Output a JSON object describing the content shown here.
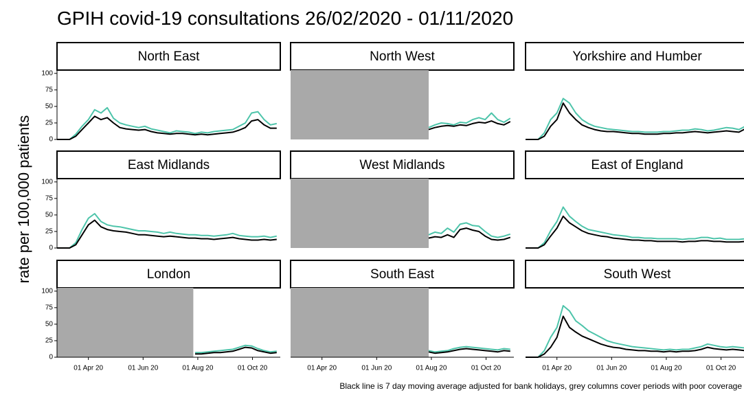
{
  "chart_data": {
    "type": "line",
    "title": "GPIH covid-19 consultations 26/02/2020 - 01/11/2020",
    "y_label": "rate per 100,000 patients",
    "caption": "Black line is 7 day moving average adjusted for bank holidays, grey columns cover periods with poor coverage",
    "x": [
      "2020-02-26",
      "2020-03-04",
      "2020-03-11",
      "2020-03-18",
      "2020-03-25",
      "2020-04-01",
      "2020-04-08",
      "2020-04-15",
      "2020-04-22",
      "2020-04-29",
      "2020-05-06",
      "2020-05-13",
      "2020-05-20",
      "2020-05-27",
      "2020-06-03",
      "2020-06-10",
      "2020-06-17",
      "2020-06-24",
      "2020-07-01",
      "2020-07-08",
      "2020-07-15",
      "2020-07-22",
      "2020-07-29",
      "2020-08-05",
      "2020-08-12",
      "2020-08-19",
      "2020-08-26",
      "2020-09-02",
      "2020-09-09",
      "2020-09-16",
      "2020-09-23",
      "2020-09-30",
      "2020-10-07",
      "2020-10-14",
      "2020-10-21",
      "2020-10-28"
    ],
    "xlim": [
      "2020-02-26",
      "2020-11-01"
    ],
    "xticks": [
      {
        "value": "2020-04-01",
        "label": "01 Apr 20"
      },
      {
        "value": "2020-06-01",
        "label": "01 Jun 20"
      },
      {
        "value": "2020-08-01",
        "label": "01 Aug 20"
      },
      {
        "value": "2020-10-01",
        "label": "01 Oct 20"
      }
    ],
    "ylim": [
      0,
      105
    ],
    "yticks": [
      0,
      25,
      50,
      75,
      100
    ],
    "shade_color": "#a9a9a9",
    "panels": [
      {
        "title": "North East",
        "series": [
          {
            "color": "#4dc4aa",
            "values": [
              0,
              0,
              0,
              8,
              20,
              30,
              45,
              40,
              48,
              32,
              25,
              22,
              20,
              18,
              20,
              16,
              14,
              12,
              10,
              13,
              12,
              11,
              9,
              11,
              10,
              12,
              13,
              14,
              15,
              20,
              25,
              40,
              42,
              30,
              22,
              24
            ]
          },
          {
            "color": "#000000",
            "values": [
              0,
              0,
              0,
              5,
              15,
              25,
              35,
              30,
              33,
              25,
              18,
              16,
              15,
              14,
              15,
              12,
              10,
              9,
              8,
              9,
              9,
              8,
              7,
              8,
              7,
              8,
              9,
              10,
              11,
              14,
              18,
              28,
              30,
              22,
              17,
              17
            ]
          }
        ]
      },
      {
        "title": "North West",
        "shaded_until": "2020-07-29",
        "series": [
          {
            "color": "#4dc4aa",
            "values": [
              null,
              null,
              null,
              null,
              null,
              null,
              null,
              null,
              null,
              null,
              null,
              null,
              null,
              null,
              null,
              null,
              null,
              null,
              null,
              null,
              null,
              null,
              18,
              22,
              25,
              24,
              22,
              26,
              25,
              30,
              33,
              30,
              40,
              30,
              26,
              32
            ]
          },
          {
            "color": "#000000",
            "values": [
              null,
              null,
              null,
              null,
              null,
              null,
              null,
              null,
              null,
              null,
              null,
              null,
              null,
              null,
              null,
              null,
              null,
              null,
              null,
              null,
              null,
              null,
              15,
              18,
              20,
              21,
              20,
              22,
              21,
              24,
              26,
              25,
              28,
              24,
              22,
              27
            ]
          }
        ]
      },
      {
        "title": "Yorkshire and Humber",
        "series": [
          {
            "color": "#4dc4aa",
            "values": [
              0,
              0,
              0,
              10,
              30,
              40,
              62,
              55,
              40,
              30,
              24,
              20,
              18,
              16,
              15,
              14,
              13,
              12,
              12,
              11,
              11,
              11,
              12,
              12,
              13,
              14,
              14,
              16,
              15,
              13,
              14,
              16,
              18,
              17,
              15,
              20
            ]
          },
          {
            "color": "#000000",
            "values": [
              0,
              0,
              0,
              5,
              20,
              30,
              55,
              40,
              30,
              22,
              18,
              15,
              13,
              12,
              12,
              11,
              10,
              9,
              9,
              8,
              8,
              8,
              9,
              9,
              10,
              10,
              11,
              12,
              11,
              10,
              11,
              12,
              13,
              12,
              11,
              16
            ]
          }
        ]
      },
      {
        "title": "East Midlands",
        "series": [
          {
            "color": "#4dc4aa",
            "values": [
              0,
              0,
              0,
              8,
              28,
              45,
              52,
              40,
              35,
              33,
              32,
              30,
              28,
              26,
              26,
              25,
              24,
              22,
              24,
              22,
              21,
              20,
              20,
              19,
              19,
              18,
              19,
              20,
              22,
              19,
              18,
              17,
              17,
              18,
              16,
              18
            ]
          },
          {
            "color": "#000000",
            "values": [
              0,
              0,
              0,
              5,
              20,
              35,
              42,
              32,
              28,
              26,
              25,
              24,
              22,
              20,
              20,
              19,
              18,
              17,
              18,
              17,
              16,
              15,
              15,
              14,
              14,
              13,
              14,
              15,
              16,
              14,
              13,
              12,
              12,
              13,
              12,
              13
            ]
          }
        ]
      },
      {
        "title": "West Midlands",
        "shaded_until": "2020-07-29",
        "series": [
          {
            "color": "#4dc4aa",
            "values": [
              null,
              null,
              null,
              null,
              null,
              null,
              null,
              null,
              null,
              null,
              null,
              null,
              null,
              null,
              null,
              null,
              null,
              null,
              null,
              null,
              null,
              null,
              20,
              24,
              22,
              30,
              24,
              36,
              38,
              34,
              33,
              25,
              18,
              16,
              18,
              21
            ]
          },
          {
            "color": "#000000",
            "values": [
              null,
              null,
              null,
              null,
              null,
              null,
              null,
              null,
              null,
              null,
              null,
              null,
              null,
              null,
              null,
              null,
              null,
              null,
              null,
              null,
              null,
              null,
              15,
              17,
              16,
              20,
              16,
              28,
              30,
              27,
              25,
              18,
              13,
              12,
              13,
              16
            ]
          }
        ]
      },
      {
        "title": "East of England",
        "series": [
          {
            "color": "#4dc4aa",
            "values": [
              0,
              0,
              0,
              8,
              26,
              40,
              62,
              48,
              40,
              33,
              28,
              26,
              24,
              22,
              20,
              19,
              18,
              16,
              16,
              15,
              15,
              14,
              14,
              14,
              14,
              13,
              14,
              14,
              16,
              16,
              14,
              15,
              13,
              13,
              13,
              14
            ]
          },
          {
            "color": "#000000",
            "values": [
              0,
              0,
              0,
              5,
              18,
              30,
              48,
              38,
              32,
              26,
              22,
              20,
              18,
              17,
              15,
              14,
              13,
              12,
              12,
              11,
              11,
              10,
              10,
              10,
              10,
              9,
              10,
              10,
              11,
              11,
              10,
              10,
              9,
              9,
              9,
              10
            ]
          }
        ]
      },
      {
        "title": "London",
        "shaded_until": "2020-07-27",
        "series": [
          {
            "color": "#4dc4aa",
            "values": [
              null,
              null,
              null,
              null,
              null,
              null,
              null,
              null,
              null,
              null,
              null,
              null,
              null,
              null,
              null,
              null,
              null,
              null,
              null,
              null,
              null,
              null,
              7,
              7,
              8,
              9,
              10,
              11,
              12,
              15,
              18,
              17,
              13,
              10,
              8,
              9
            ]
          },
          {
            "color": "#000000",
            "values": [
              null,
              null,
              null,
              null,
              null,
              null,
              null,
              null,
              null,
              null,
              null,
              null,
              null,
              null,
              null,
              null,
              null,
              null,
              null,
              null,
              null,
              null,
              5,
              5,
              6,
              7,
              7,
              8,
              9,
              12,
              15,
              14,
              10,
              8,
              6,
              7
            ]
          }
        ]
      },
      {
        "title": "South East",
        "shaded_until": "2020-07-29",
        "series": [
          {
            "color": "#4dc4aa",
            "values": [
              null,
              null,
              null,
              null,
              null,
              null,
              null,
              null,
              null,
              null,
              null,
              null,
              null,
              null,
              null,
              null,
              null,
              null,
              null,
              null,
              null,
              null,
              10,
              8,
              9,
              10,
              13,
              15,
              16,
              15,
              14,
              13,
              12,
              11,
              13,
              12
            ]
          },
          {
            "color": "#000000",
            "values": [
              null,
              null,
              null,
              null,
              null,
              null,
              null,
              null,
              null,
              null,
              null,
              null,
              null,
              null,
              null,
              null,
              null,
              null,
              null,
              null,
              null,
              null,
              8,
              6,
              7,
              8,
              10,
              12,
              13,
              12,
              11,
              10,
              9,
              8,
              10,
              9
            ]
          }
        ]
      },
      {
        "title": "South West",
        "series": [
          {
            "color": "#4dc4aa",
            "values": [
              0,
              0,
              0,
              10,
              30,
              45,
              78,
              70,
              55,
              48,
              40,
              35,
              30,
              25,
              22,
              20,
              18,
              16,
              15,
              14,
              13,
              12,
              11,
              12,
              11,
              12,
              12,
              14,
              16,
              20,
              18,
              16,
              15,
              16,
              15,
              14
            ]
          },
          {
            "color": "#000000",
            "values": [
              0,
              0,
              0,
              5,
              15,
              30,
              62,
              45,
              38,
              32,
              28,
              24,
              20,
              17,
              15,
              14,
              12,
              11,
              10,
              10,
              9,
              9,
              8,
              9,
              8,
              9,
              9,
              10,
              12,
              15,
              13,
              12,
              11,
              12,
              11,
              10
            ]
          }
        ]
      }
    ]
  }
}
